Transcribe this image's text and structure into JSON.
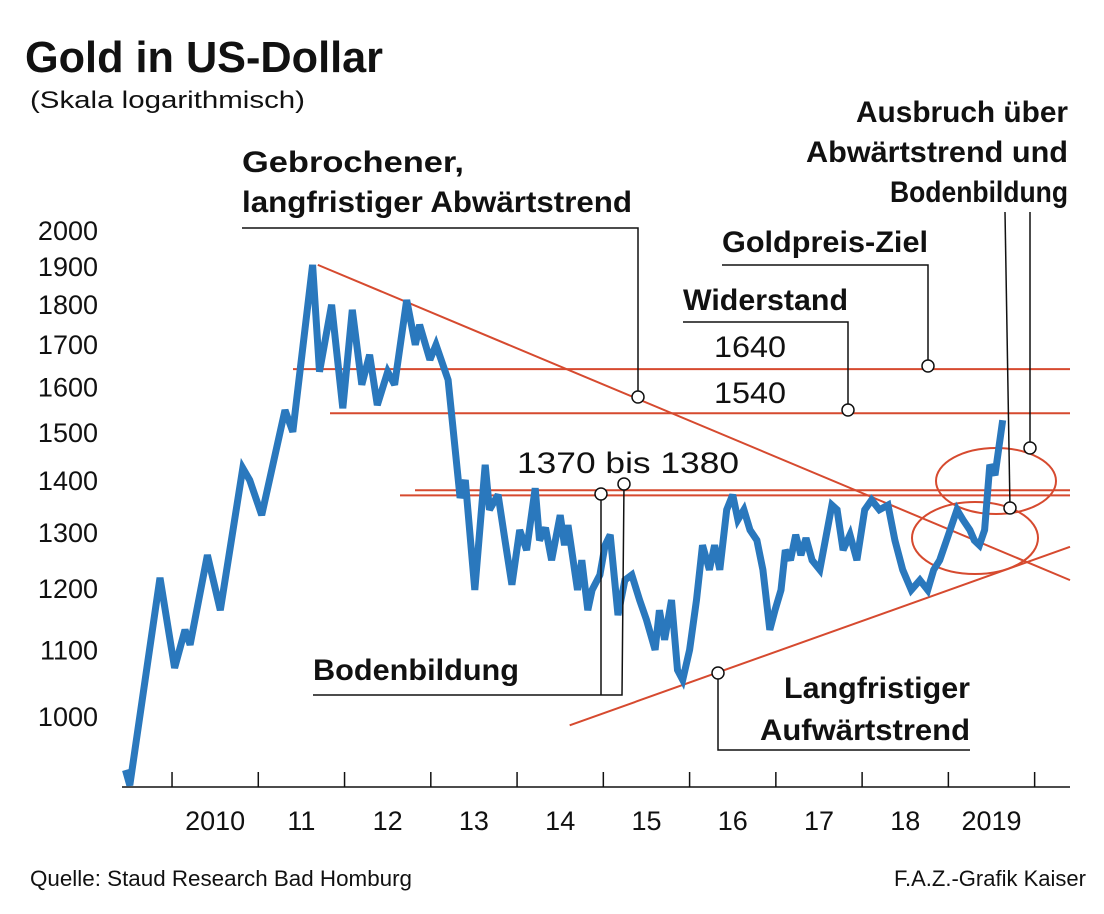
{
  "chart_data": {
    "type": "line",
    "title": "Gold in US-Dollar",
    "subtitle": "(Skala logarithmisch)",
    "yscale": "log",
    "xlim": [
      2009.42,
      2020.41
    ],
    "ylim": [
      900,
      2000
    ],
    "yticks": [
      1000,
      1100,
      1200,
      1300,
      1400,
      1500,
      1600,
      1700,
      1800,
      1900,
      2000
    ],
    "xticks": [
      {
        "value": 2010.5,
        "label": "2010"
      },
      {
        "value": 2011.5,
        "label": "11"
      },
      {
        "value": 2012.5,
        "label": "12"
      },
      {
        "value": 2013.5,
        "label": "13"
      },
      {
        "value": 2014.5,
        "label": "14"
      },
      {
        "value": 2015.5,
        "label": "15"
      },
      {
        "value": 2016.5,
        "label": "16"
      },
      {
        "value": 2017.5,
        "label": "17"
      },
      {
        "value": 2018.5,
        "label": "18"
      },
      {
        "value": 2019.5,
        "label": "2019"
      }
    ],
    "xminor": [
      2010,
      2011,
      2012,
      2013,
      2014,
      2015,
      2016,
      2017,
      2018,
      2019,
      2020
    ],
    "grid": false,
    "series": [
      {
        "color": "#2a78bd",
        "x": [
          2009.46,
          2009.51,
          2009.86,
          2010.03,
          2010.15,
          2010.21,
          2010.41,
          2010.56,
          2010.82,
          2010.9,
          2011.04,
          2011.31,
          2011.4,
          2011.63,
          2011.71,
          2011.85,
          2011.98,
          2012.09,
          2012.2,
          2012.29,
          2012.38,
          2012.5,
          2012.58,
          2012.72,
          2012.82,
          2012.87,
          2012.99,
          2013.06,
          2013.2,
          2013.34,
          2013.4,
          2013.51,
          2013.63,
          2013.68,
          2013.78,
          2013.86,
          2013.94,
          2014.03,
          2014.11,
          2014.21,
          2014.26,
          2014.33,
          2014.4,
          2014.5,
          2014.55,
          2014.59,
          2014.7,
          2014.75,
          2014.82,
          2014.87,
          2014.96,
          2015.02,
          2015.08,
          2015.17,
          2015.25,
          2015.33,
          2015.42,
          2015.5,
          2015.6,
          2015.65,
          2015.71,
          2015.79,
          2015.86,
          2015.92,
          2016.0,
          2016.08,
          2016.15,
          2016.23,
          2016.29,
          2016.35,
          2016.43,
          2016.5,
          2016.56,
          2016.63,
          2016.7,
          2016.78,
          2016.85,
          2016.93,
          2016.99,
          2017.06,
          2017.11,
          2017.17,
          2017.23,
          2017.29,
          2017.35,
          2017.42,
          2017.51,
          2017.65,
          2017.71,
          2017.78,
          2017.86,
          2017.94,
          2018.03,
          2018.11,
          2018.2,
          2018.3,
          2018.38,
          2018.47,
          2018.57,
          2018.67,
          2018.76,
          2018.83,
          2018.9,
          2019.02,
          2019.1,
          2019.17,
          2019.25,
          2019.3,
          2019.36,
          2019.42,
          2019.48,
          2019.54,
          2019.63
        ],
        "values": [
          926,
          906,
          1218,
          1071,
          1131,
          1107,
          1258,
          1163,
          1424,
          1400,
          1332,
          1547,
          1500,
          1903,
          1634,
          1798,
          1551,
          1785,
          1604,
          1674,
          1558,
          1634,
          1604,
          1810,
          1698,
          1747,
          1662,
          1698,
          1615,
          1365,
          1400,
          1197,
          1431,
          1342,
          1371,
          1285,
          1206,
          1304,
          1267,
          1384,
          1285,
          1308,
          1249,
          1332,
          1276,
          1313,
          1197,
          1249,
          1163,
          1197,
          1223,
          1276,
          1295,
          1155,
          1214,
          1223,
          1180,
          1147,
          1099,
          1163,
          1115,
          1180,
          1068,
          1053,
          1099,
          1180,
          1276,
          1232,
          1276,
          1232,
          1342,
          1371,
          1323,
          1342,
          1304,
          1285,
          1232,
          1131,
          1163,
          1197,
          1267,
          1249,
          1295,
          1258,
          1289,
          1249,
          1232,
          1351,
          1342,
          1267,
          1295,
          1249,
          1342,
          1361,
          1342,
          1351,
          1285,
          1232,
          1197,
          1214,
          1197,
          1232,
          1249,
          1304,
          1342,
          1323,
          1304,
          1285,
          1276,
          1304,
          1431,
          1410,
          1525
        ]
      }
    ],
    "reference_color": "#d64a2f",
    "reference_lines": [
      1640,
      1540,
      1380,
      1370
    ],
    "trendlines": [
      {
        "x": [
          2011.69,
          2020.41
        ],
        "values": [
          1903,
          1214
        ]
      },
      {
        "x": [
          2014.61,
          2020.41
        ],
        "values": [
          987,
          1273
        ]
      }
    ],
    "annotations": {
      "broken_trend": [
        "Gebrochener,",
        "langfristiger Abwärtstrend"
      ],
      "breakout": [
        "Ausbruch über",
        "Abwärtstrend und",
        "Bodenbildung"
      ],
      "target": "Goldpreis-Ziel",
      "resistance": "Widerstand",
      "range": "1370 bis 1380",
      "bottom": "Bodenbildung",
      "uptrend": [
        "Langfristiger",
        "Aufwärtstrend"
      ]
    },
    "source": "Quelle: Staud Research Bad Homburg",
    "credit": "F.A.Z.-Grafik Kaiser"
  }
}
